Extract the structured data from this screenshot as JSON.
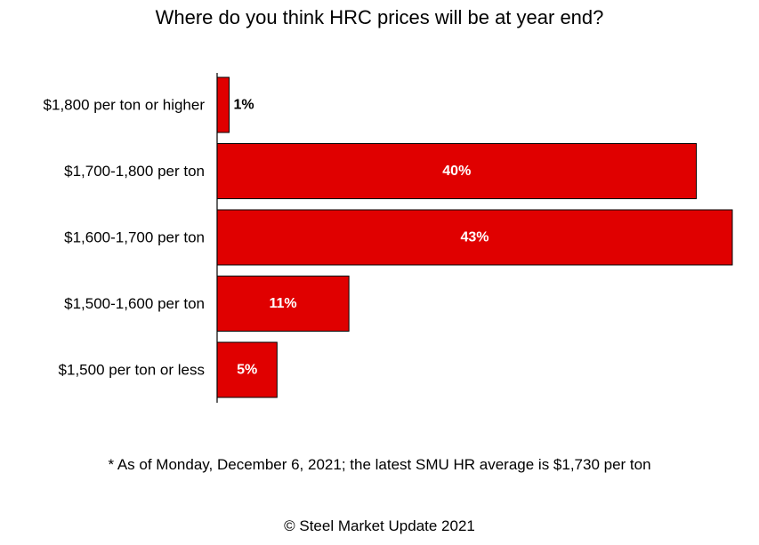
{
  "chart_data": {
    "type": "bar",
    "orientation": "horizontal",
    "title": "Where do you think HRC prices will be at year end?",
    "categories": [
      "$1,800 per ton or higher",
      "$1,700-1,800 per ton",
      "$1,600-1,700 per ton",
      "$1,500-1,600 per ton",
      "$1,500 per ton or less"
    ],
    "values": [
      1,
      40,
      43,
      11,
      5
    ],
    "value_labels": [
      "1%",
      "40%",
      "43%",
      "11%",
      "5%"
    ],
    "unit": "%",
    "xlim": [
      0,
      43
    ],
    "bar_color": "#e00000",
    "label_color_inside": "#ffffff",
    "label_color_outside": "#000000",
    "grid": false,
    "legend": "none"
  },
  "footnote": "* As of Monday, December 6, 2021; the latest SMU HR average is $1,730 per ton",
  "copyright": "© Steel Market Update 2021"
}
